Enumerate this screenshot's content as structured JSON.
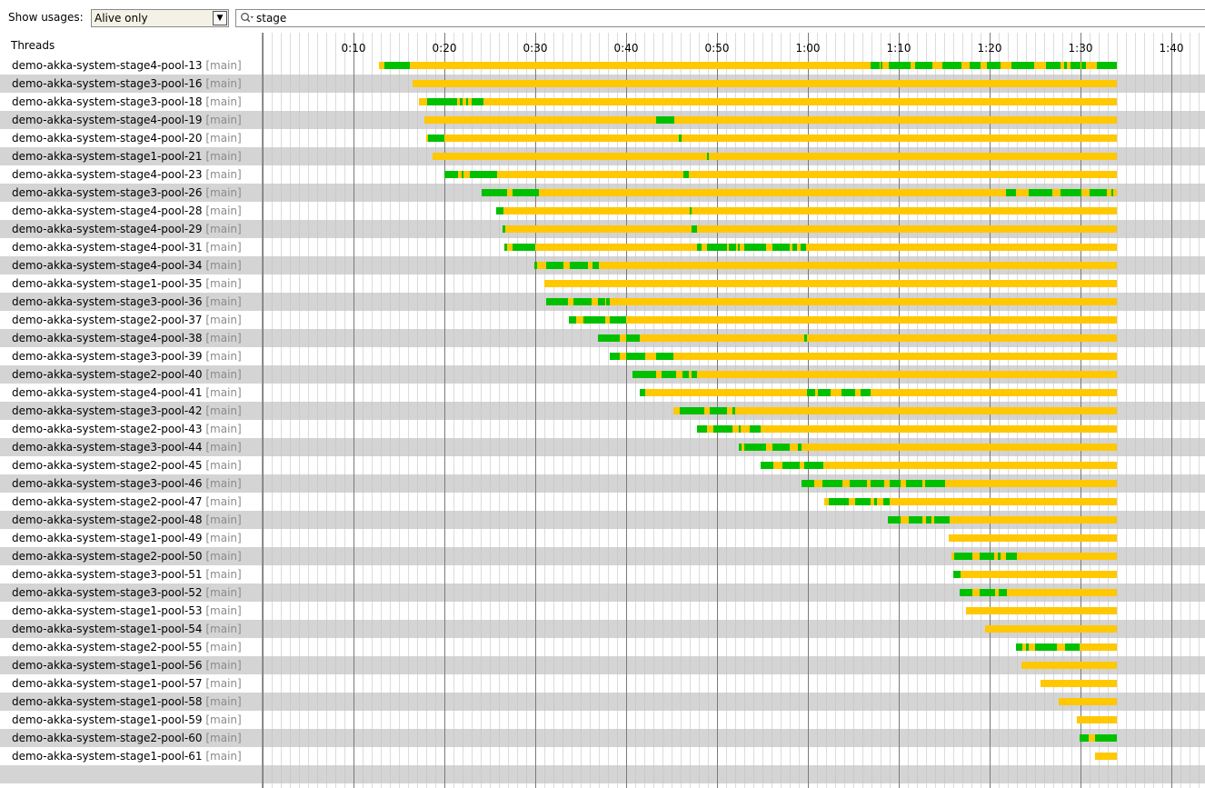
{
  "toolbar": {
    "show_usages_label": "Show usages:",
    "usage_filter_value": "Alive only",
    "search_value": "stage"
  },
  "threads_header": "Threads",
  "colors": {
    "running": "#00c000",
    "waiting": "#ffc800",
    "stripe": "#d4d4d4"
  },
  "timeline": {
    "ticks": [
      "0:10",
      "0:20",
      "0:30",
      "0:40",
      "0:50",
      "1:00",
      "1:10",
      "1:20",
      "1:30",
      "1:40"
    ],
    "tick_seconds": [
      10,
      20,
      30,
      40,
      50,
      60,
      70,
      80,
      90,
      100
    ],
    "end_seconds": 94.0
  },
  "threads": [
    {
      "name": "demo-akka-system-stage4-pool-13",
      "group": "[main]",
      "start": 12.8,
      "running": [
        [
          13.4,
          16.2
        ],
        [
          66.9,
          67.9
        ],
        [
          68.0,
          68.2
        ],
        [
          68.9,
          71.3
        ],
        [
          71.8,
          73.7
        ],
        [
          74.8,
          76.9
        ],
        [
          77.8,
          79.0
        ],
        [
          79.7,
          81.2
        ],
        [
          82.4,
          84.9
        ],
        [
          86.2,
          87.8
        ],
        [
          88.2,
          88.5
        ],
        [
          88.9,
          90.0
        ],
        [
          90.1,
          90.6
        ],
        [
          91.8,
          94.0
        ]
      ]
    },
    {
      "name": "demo-akka-system-stage3-pool-16",
      "group": "[main]",
      "start": 16.5,
      "running": []
    },
    {
      "name": "demo-akka-system-stage3-pool-18",
      "group": "[main]",
      "start": 17.2,
      "running": [
        [
          18.1,
          21.4
        ],
        [
          21.7,
          22.0
        ],
        [
          22.4,
          22.6
        ],
        [
          23.0,
          24.3
        ]
      ]
    },
    {
      "name": "demo-akka-system-stage4-pool-19",
      "group": "[main]",
      "start": 17.8,
      "running": [
        [
          43.3,
          45.3
        ]
      ]
    },
    {
      "name": "demo-akka-system-stage4-pool-20",
      "group": "[main]",
      "start": 18.0,
      "running": [
        [
          18.2,
          20.0
        ],
        [
          45.8,
          46.1
        ]
      ]
    },
    {
      "name": "demo-akka-system-stage1-pool-21",
      "group": "[main]",
      "start": 18.7,
      "running": [
        [
          48.9,
          49.1
        ]
      ]
    },
    {
      "name": "demo-akka-system-stage4-pool-23",
      "group": "[main]",
      "start": 20.0,
      "running": [
        [
          20.0,
          21.5
        ],
        [
          21.9,
          22.0
        ],
        [
          22.8,
          25.8
        ],
        [
          46.3,
          46.9
        ]
      ]
    },
    {
      "name": "demo-akka-system-stage3-pool-26",
      "group": "[main]",
      "start": 24.1,
      "running": [
        [
          24.1,
          26.9
        ],
        [
          27.5,
          30.4
        ],
        [
          81.8,
          82.9
        ],
        [
          84.3,
          86.9
        ],
        [
          87.8,
          90.1
        ],
        [
          91.0,
          92.9
        ],
        [
          93.4,
          93.6
        ]
      ]
    },
    {
      "name": "demo-akka-system-stage4-pool-28",
      "group": "[main]",
      "start": 25.7,
      "running": [
        [
          25.7,
          26.5
        ],
        [
          47.0,
          47.2
        ]
      ]
    },
    {
      "name": "demo-akka-system-stage4-pool-29",
      "group": "[main]",
      "start": 26.4,
      "running": [
        [
          26.4,
          26.7
        ],
        [
          47.2,
          47.8
        ]
      ]
    },
    {
      "name": "demo-akka-system-stage4-pool-31",
      "group": "[main]",
      "start": 26.6,
      "running": [
        [
          26.6,
          26.9
        ],
        [
          27.5,
          30.0
        ],
        [
          47.8,
          48.3
        ],
        [
          48.9,
          51.1
        ],
        [
          51.3,
          52.1
        ],
        [
          52.3,
          52.5
        ],
        [
          53.0,
          55.4
        ],
        [
          56.1,
          58.0
        ],
        [
          58.3,
          58.8
        ],
        [
          59.2,
          59.8
        ]
      ]
    },
    {
      "name": "demo-akka-system-stage4-pool-34",
      "group": "[main]",
      "start": 29.9,
      "running": [
        [
          29.9,
          30.2
        ],
        [
          31.2,
          33.1
        ],
        [
          33.8,
          35.8
        ],
        [
          36.3,
          37.0
        ]
      ]
    },
    {
      "name": "demo-akka-system-stage1-pool-35",
      "group": "[main]",
      "start": 31.0,
      "running": []
    },
    {
      "name": "demo-akka-system-stage3-pool-36",
      "group": "[main]",
      "start": 31.2,
      "running": [
        [
          31.2,
          33.6
        ],
        [
          34.2,
          36.2
        ],
        [
          36.9,
          37.7
        ],
        [
          37.8,
          38.2
        ]
      ]
    },
    {
      "name": "demo-akka-system-stage2-pool-37",
      "group": "[main]",
      "start": 33.7,
      "running": [
        [
          33.7,
          34.5
        ],
        [
          35.3,
          37.7
        ],
        [
          38.2,
          40.0
        ]
      ]
    },
    {
      "name": "demo-akka-system-stage4-pool-38",
      "group": "[main]",
      "start": 36.9,
      "running": [
        [
          36.9,
          39.3
        ],
        [
          40.0,
          41.5
        ],
        [
          59.6,
          59.9
        ]
      ]
    },
    {
      "name": "demo-akka-system-stage3-pool-39",
      "group": "[main]",
      "start": 38.2,
      "running": [
        [
          38.2,
          39.3
        ],
        [
          40.0,
          42.1
        ],
        [
          43.3,
          45.2
        ]
      ]
    },
    {
      "name": "demo-akka-system-stage2-pool-40",
      "group": "[main]",
      "start": 40.7,
      "running": [
        [
          40.7,
          43.3
        ],
        [
          43.9,
          45.5
        ],
        [
          46.2,
          46.9
        ],
        [
          47.2,
          47.8
        ]
      ]
    },
    {
      "name": "demo-akka-system-stage4-pool-41",
      "group": "[main]",
      "start": 41.5,
      "running": [
        [
          41.5,
          42.1
        ],
        [
          59.9,
          60.8
        ],
        [
          61.1,
          62.5
        ],
        [
          63.7,
          65.2
        ],
        [
          65.8,
          66.9
        ]
      ]
    },
    {
      "name": "demo-akka-system-stage3-pool-42",
      "group": "[main]",
      "start": 45.2,
      "running": [
        [
          45.9,
          48.6
        ],
        [
          49.2,
          51.1
        ],
        [
          51.7,
          52.0
        ]
      ]
    },
    {
      "name": "demo-akka-system-stage2-pool-43",
      "group": "[main]",
      "start": 47.8,
      "running": [
        [
          47.8,
          48.9
        ],
        [
          49.6,
          51.7
        ],
        [
          52.4,
          52.6
        ],
        [
          53.6,
          54.8
        ]
      ]
    },
    {
      "name": "demo-akka-system-stage3-pool-44",
      "group": "[main]",
      "start": 52.4,
      "running": [
        [
          52.4,
          52.7
        ],
        [
          53.0,
          55.4
        ],
        [
          56.1,
          58.0
        ],
        [
          58.9,
          59.3
        ]
      ]
    },
    {
      "name": "demo-akka-system-stage2-pool-45",
      "group": "[main]",
      "start": 54.8,
      "running": [
        [
          54.8,
          56.2
        ],
        [
          57.2,
          59.1
        ],
        [
          59.6,
          61.7
        ]
      ]
    },
    {
      "name": "demo-akka-system-stage3-pool-46",
      "group": "[main]",
      "start": 59.3,
      "running": [
        [
          59.3,
          60.7
        ],
        [
          61.6,
          63.8
        ],
        [
          64.6,
          66.5
        ],
        [
          66.9,
          68.4
        ],
        [
          69.0,
          70.2
        ],
        [
          70.8,
          72.6
        ],
        [
          72.9,
          75.1
        ]
      ]
    },
    {
      "name": "demo-akka-system-stage2-pool-47",
      "group": "[main]",
      "start": 61.8,
      "running": [
        [
          62.3,
          64.5
        ],
        [
          65.2,
          66.9
        ],
        [
          67.3,
          67.6
        ],
        [
          68.3,
          69.0
        ]
      ]
    },
    {
      "name": "demo-akka-system-stage2-pool-48",
      "group": "[main]",
      "start": 68.8,
      "running": [
        [
          68.8,
          70.2
        ],
        [
          71.1,
          72.6
        ],
        [
          73.0,
          73.6
        ],
        [
          73.9,
          75.6
        ]
      ]
    },
    {
      "name": "demo-akka-system-stage1-pool-49",
      "group": "[main]",
      "start": 75.5,
      "running": []
    },
    {
      "name": "demo-akka-system-stage2-pool-50",
      "group": "[main]",
      "start": 75.8,
      "running": [
        [
          76.1,
          78.1
        ],
        [
          78.9,
          80.5
        ],
        [
          80.9,
          81.2
        ],
        [
          81.8,
          83.0
        ]
      ]
    },
    {
      "name": "demo-akka-system-stage3-pool-51",
      "group": "[main]",
      "start": 76.0,
      "running": [
        [
          76.0,
          76.8
        ]
      ]
    },
    {
      "name": "demo-akka-system-stage3-pool-52",
      "group": "[main]",
      "start": 76.7,
      "running": [
        [
          76.7,
          78.1
        ],
        [
          78.9,
          80.6
        ],
        [
          81.0,
          81.9
        ]
      ]
    },
    {
      "name": "demo-akka-system-stage1-pool-53",
      "group": "[main]",
      "start": 77.4,
      "running": []
    },
    {
      "name": "demo-akka-system-stage1-pool-54",
      "group": "[main]",
      "start": 79.5,
      "running": []
    },
    {
      "name": "demo-akka-system-stage2-pool-55",
      "group": "[main]",
      "start": 82.9,
      "running": [
        [
          82.9,
          83.6
        ],
        [
          84.0,
          84.3
        ],
        [
          85.0,
          87.4
        ],
        [
          88.3,
          89.9
        ]
      ]
    },
    {
      "name": "demo-akka-system-stage1-pool-56",
      "group": "[main]",
      "start": 83.5,
      "running": []
    },
    {
      "name": "demo-akka-system-stage1-pool-57",
      "group": "[main]",
      "start": 85.6,
      "running": []
    },
    {
      "name": "demo-akka-system-stage1-pool-58",
      "group": "[main]",
      "start": 87.6,
      "running": []
    },
    {
      "name": "demo-akka-system-stage1-pool-59",
      "group": "[main]",
      "start": 89.6,
      "running": []
    },
    {
      "name": "demo-akka-system-stage2-pool-60",
      "group": "[main]",
      "start": 89.9,
      "running": [
        [
          89.9,
          90.9
        ],
        [
          91.6,
          94.0
        ]
      ]
    },
    {
      "name": "demo-akka-system-stage1-pool-61",
      "group": "[main]",
      "start": 91.6,
      "running": []
    }
  ]
}
